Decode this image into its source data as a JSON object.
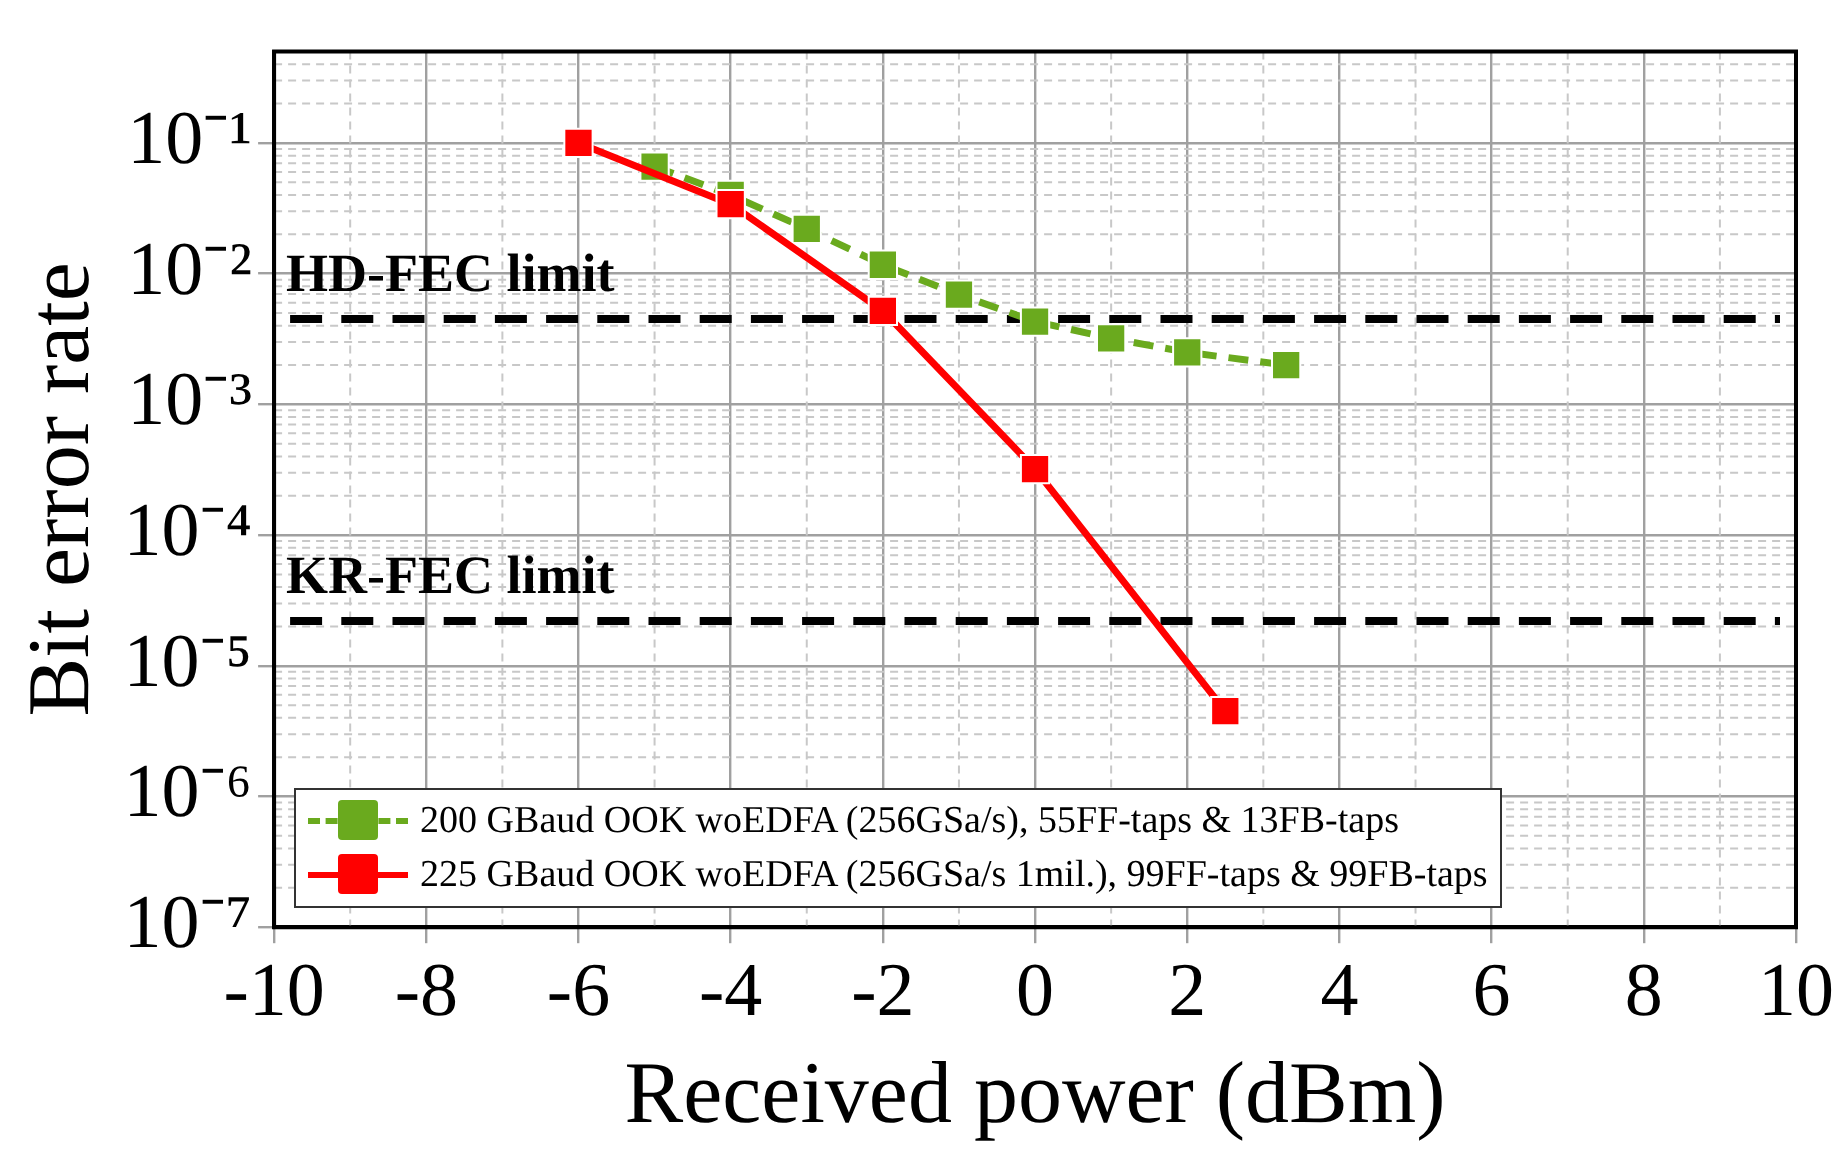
{
  "chart_data": {
    "type": "line",
    "xlabel": "Received power (dBm)",
    "ylabel": "Bit error rate",
    "series": [
      {
        "name": "200 GBaud OOK woEDFA (256GSa/s), 55FF-taps & 13FB-taps",
        "color": "#6aaa1e",
        "line_style": "dashed",
        "x": [
          -5,
          -4,
          -3,
          -2,
          -1,
          0,
          1,
          2,
          3.3
        ],
        "values": [
          0.066,
          0.04,
          0.022,
          0.0117,
          0.0069,
          0.0043,
          0.0032,
          0.0025,
          0.002
        ]
      },
      {
        "name": "225 GBaud OOK woEDFA (256GSa/s 1mil.), 99FF-taps & 99FB-taps",
        "color": "#ff0000",
        "line_style": "solid",
        "x": [
          -6,
          -4,
          -2,
          0,
          2.5
        ],
        "values": [
          0.1,
          0.034,
          0.0052,
          0.00032,
          4.5e-06
        ]
      }
    ],
    "marker": "square",
    "log": "y",
    "grid": true,
    "legend": "bottom left",
    "xlim": [
      -10,
      10
    ],
    "xticks": [
      -10,
      -8,
      -6,
      -4,
      -2,
      0,
      2,
      4,
      6,
      8,
      10
    ],
    "ylim": [
      1e-07,
      0.5
    ],
    "yticks": [
      {
        "value": 0.1,
        "label": "10⁻¹"
      },
      {
        "value": 0.01,
        "label": "10⁻²"
      },
      {
        "value": 0.001,
        "label": "10⁻³"
      },
      {
        "value": 0.0001,
        "label": "10⁻⁴"
      },
      {
        "value": 1e-05,
        "label": "10⁻⁵"
      },
      {
        "value": 1e-06,
        "label": "10⁻⁶"
      },
      {
        "value": 1e-07,
        "label": "10⁻⁷"
      }
    ],
    "ref_lines": [
      {
        "axis": "y",
        "value": 0.0045,
        "label": "HD-FEC limit",
        "color": "#000000",
        "line_style": "dashed"
      },
      {
        "axis": "y",
        "value": 2.2e-05,
        "label": "KR-FEC limit",
        "color": "#000000",
        "line_style": "dashed"
      }
    ]
  }
}
